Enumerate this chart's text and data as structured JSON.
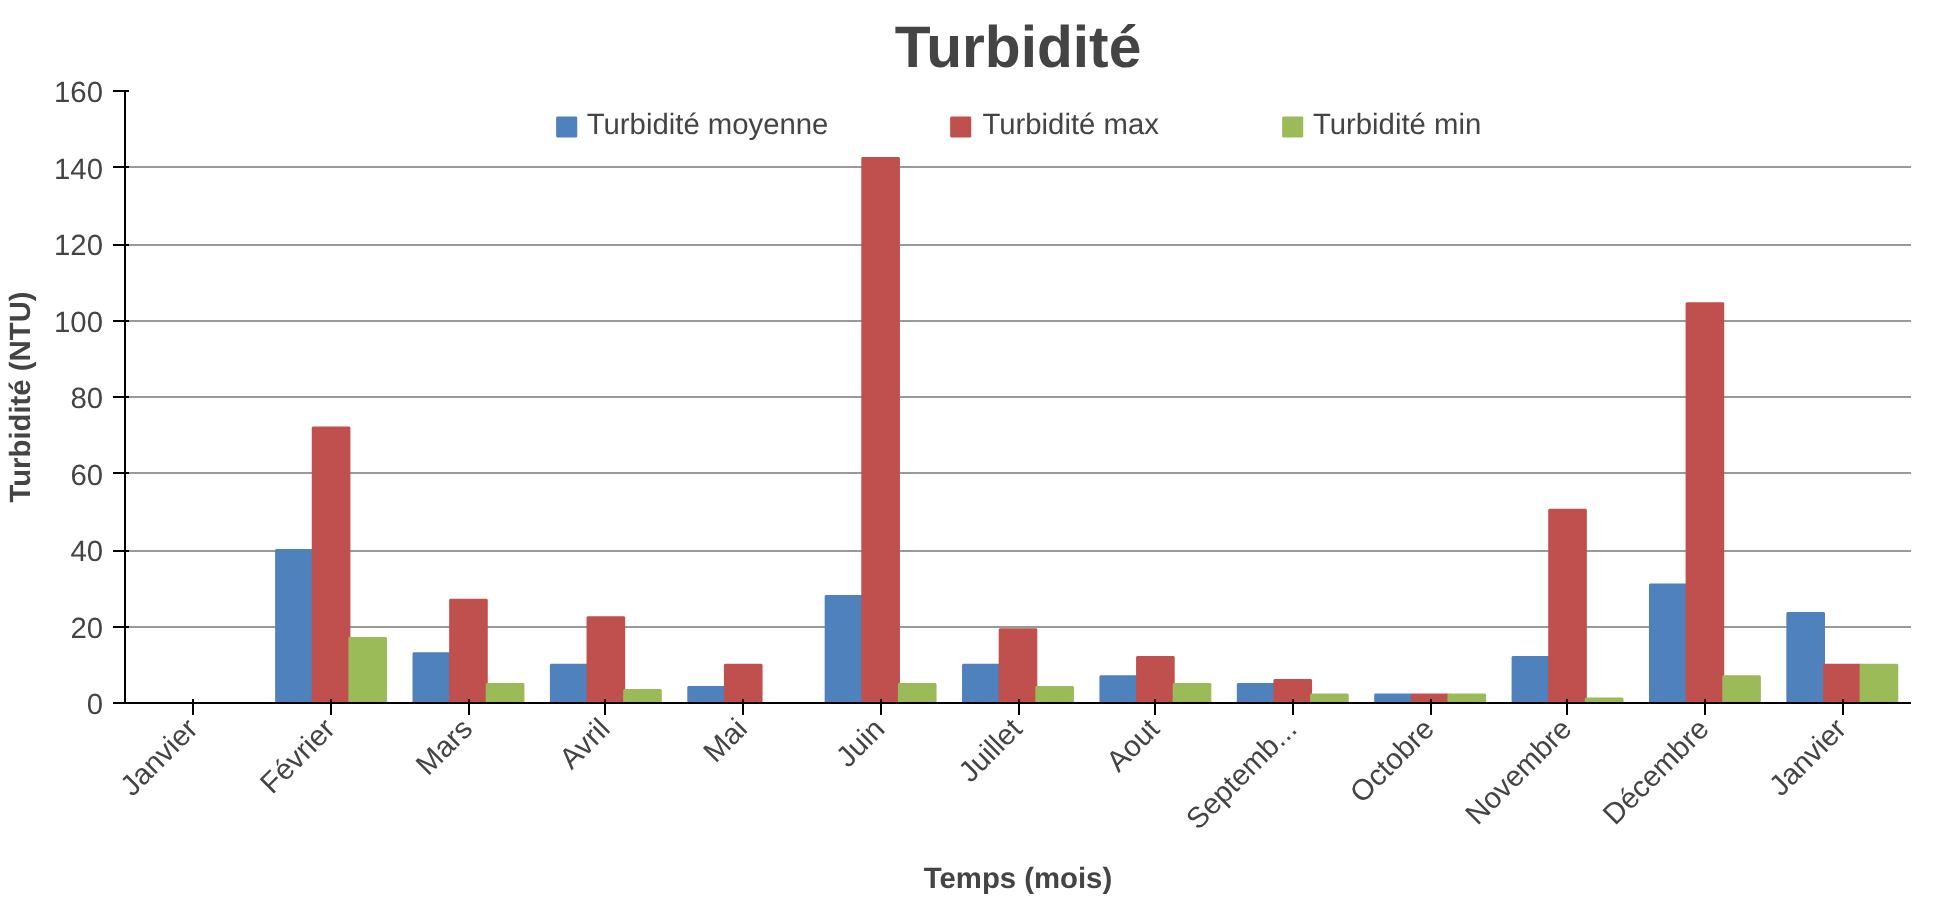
{
  "chart_data": {
    "type": "bar",
    "title": "Turbidité",
    "xlabel": "Temps (mois)",
    "ylabel": "Turbidité (NTU)",
    "categories": [
      "Janvier",
      "Février",
      "Mars",
      "Avril",
      "Mai",
      "Juin",
      "Juillet",
      "Aout",
      "Septemb...",
      "Octobre",
      "Novembre",
      "Décembre",
      "Janvier"
    ],
    "series": [
      {
        "name": "Turbidité moyenne",
        "color": "#4f81bd",
        "values": [
          null,
          40,
          13,
          10,
          4.2,
          28,
          10,
          7,
          5,
          2.2,
          12,
          31,
          23.5
        ]
      },
      {
        "name": "Turbidité max",
        "color": "#c0504d",
        "values": [
          null,
          72,
          27,
          22.4,
          10,
          142.5,
          19.3,
          12,
          6,
          2.2,
          50.5,
          104.5,
          10
        ]
      },
      {
        "name": "Turbidité min",
        "color": "#9bbb59",
        "values": [
          null,
          17,
          5,
          3.4,
          null,
          5,
          4.2,
          5,
          2.2,
          2.2,
          1.2,
          7,
          10
        ]
      }
    ],
    "ylim": [
      0,
      160
    ],
    "yticks": [
      0,
      20,
      40,
      60,
      80,
      100,
      120,
      140,
      160
    ],
    "grid": "y",
    "legend": "top"
  }
}
